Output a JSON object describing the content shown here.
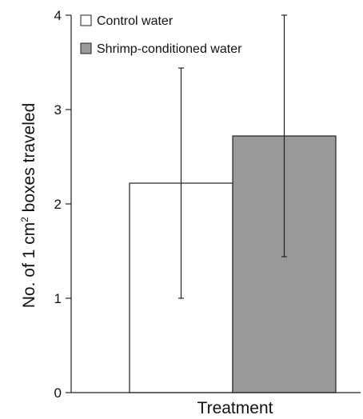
{
  "chart_data": {
    "type": "bar",
    "xlabel": "Treatment",
    "ylabel_prefix": "No. of 1 cm",
    "ylabel_superscript": "2",
    "ylabel_suffix": " boxes traveled",
    "ylim": [
      0,
      4
    ],
    "yticks": [
      "0",
      "1",
      "2",
      "3",
      "4"
    ],
    "grid": false,
    "legend_position": "top-left",
    "series": [
      {
        "name": "Control water",
        "value": 2.22,
        "error_low": 1.0,
        "error_high": 3.44,
        "color": "#ffffff"
      },
      {
        "name": "Shrimp-conditioned water",
        "value": 2.72,
        "error_low": 1.44,
        "error_high": 4.0,
        "color": "#999999"
      }
    ]
  }
}
